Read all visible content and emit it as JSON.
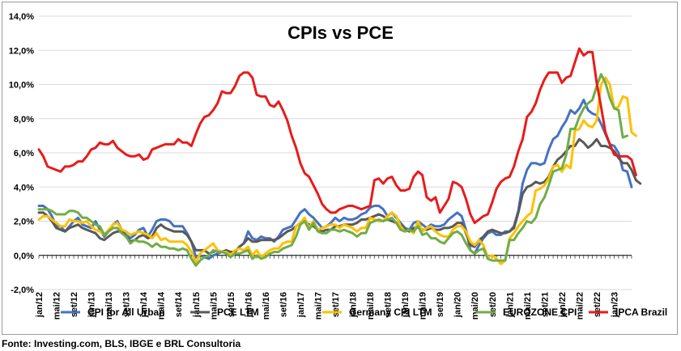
{
  "chart_data": {
    "type": "line",
    "title": "CPIs vs PCE",
    "source": "Fonte: Investing.com, BLS, IBGE e BRL Consultoria",
    "ylim": [
      -2,
      14
    ],
    "yticks": [
      -2,
      0,
      2,
      4,
      6,
      8,
      10,
      12,
      14
    ],
    "ytick_labels": [
      "-2,0%",
      "0,0%",
      "2,0%",
      "4,0%",
      "6,0%",
      "8,0%",
      "10,0%",
      "12,0%",
      "14,0%"
    ],
    "xtick_labels": [
      "jan/12",
      "mai/12",
      "set/12",
      "jan/13",
      "mai/13",
      "set/13",
      "jan/14",
      "mai/14",
      "set/14",
      "jan/15",
      "mai/15",
      "set/15",
      "jan/16",
      "mai/16",
      "set/16",
      "jan/17",
      "mai/17",
      "set/17",
      "jan/18",
      "mai/18",
      "set/18",
      "jan/19",
      "mai/19",
      "set/19",
      "jan/20",
      "mai/20",
      "set/20",
      "jan/21",
      "mai/21",
      "set/21",
      "jan/22",
      "mai/22",
      "set/22",
      "jan/23"
    ],
    "x_start": "2012-01",
    "legend_position": "bottom",
    "grid": true,
    "series": [
      {
        "name": "CPI for All Urban",
        "color": "#4472C4",
        "values": [
          2.9,
          2.9,
          2.7,
          2.3,
          1.7,
          1.7,
          1.4,
          1.7,
          2.0,
          2.2,
          1.8,
          1.7,
          1.6,
          2.0,
          1.5,
          1.1,
          1.4,
          1.8,
          2.0,
          1.5,
          1.2,
          1.0,
          1.2,
          1.5,
          1.6,
          1.1,
          1.5,
          2.0,
          2.1,
          2.1,
          2.0,
          1.7,
          1.7,
          1.7,
          1.3,
          0.8,
          -0.1,
          0.0,
          -0.1,
          -0.2,
          0.0,
          0.1,
          0.2,
          0.2,
          0.0,
          0.2,
          0.5,
          0.7,
          1.4,
          1.0,
          0.9,
          1.1,
          1.0,
          1.0,
          0.8,
          1.1,
          1.5,
          1.6,
          1.7,
          2.1,
          2.5,
          2.7,
          2.4,
          2.2,
          1.9,
          1.6,
          1.7,
          1.9,
          2.2,
          2.0,
          2.2,
          2.1,
          2.1,
          2.2,
          2.4,
          2.5,
          2.8,
          2.9,
          2.9,
          2.7,
          2.3,
          2.5,
          2.2,
          1.9,
          1.6,
          1.5,
          1.9,
          2.0,
          1.8,
          1.6,
          1.8,
          1.7,
          1.7,
          1.8,
          2.1,
          2.3,
          2.5,
          2.3,
          1.5,
          0.3,
          0.1,
          0.6,
          1.0,
          1.3,
          1.4,
          1.2,
          1.2,
          1.4,
          1.4,
          1.7,
          2.6,
          4.2,
          5.0,
          5.4,
          5.4,
          5.3,
          5.4,
          6.2,
          6.8,
          7.0,
          7.5,
          7.9,
          8.5,
          8.3,
          8.6,
          9.1,
          8.5,
          8.3,
          8.2,
          7.7,
          7.1,
          6.5,
          6.4,
          6.0,
          5.0,
          4.9,
          4.0
        ]
      },
      {
        "name": "PCE LTM",
        "color": "#595959",
        "values": [
          2.5,
          2.5,
          2.3,
          2.0,
          1.6,
          1.5,
          1.4,
          1.6,
          1.7,
          1.8,
          1.6,
          1.5,
          1.4,
          1.3,
          1.0,
          0.9,
          1.1,
          1.3,
          1.4,
          1.4,
          1.1,
          0.8,
          0.9,
          1.1,
          1.2,
          1.0,
          1.1,
          1.6,
          1.8,
          1.6,
          1.5,
          1.4,
          1.4,
          1.4,
          1.2,
          0.8,
          0.3,
          0.3,
          0.3,
          0.1,
          0.2,
          0.3,
          0.2,
          0.3,
          0.2,
          0.2,
          0.5,
          0.7,
          1.0,
          0.8,
          0.8,
          0.9,
          0.9,
          0.9,
          0.9,
          1.0,
          1.2,
          1.4,
          1.5,
          1.7,
          1.9,
          2.0,
          1.8,
          1.7,
          1.5,
          1.4,
          1.5,
          1.5,
          1.7,
          1.7,
          1.8,
          1.8,
          1.8,
          1.9,
          2.1,
          2.1,
          2.2,
          2.3,
          2.4,
          2.3,
          2.1,
          2.0,
          1.9,
          1.8,
          1.5,
          1.4,
          1.6,
          1.7,
          1.5,
          1.5,
          1.6,
          1.5,
          1.5,
          1.6,
          1.6,
          1.7,
          1.9,
          1.9,
          1.3,
          0.6,
          0.5,
          0.9,
          1.1,
          1.4,
          1.5,
          1.4,
          1.3,
          1.3,
          1.4,
          1.6,
          2.5,
          3.6,
          4.0,
          4.1,
          4.3,
          4.2,
          4.3,
          4.6,
          5.2,
          5.6,
          5.8,
          6.1,
          6.4,
          6.4,
          6.8,
          6.6,
          6.3,
          6.5,
          6.8,
          6.4,
          6.4,
          6.3,
          6.1,
          5.7,
          5.4,
          5.4,
          5.0,
          4.4,
          4.2
        ]
      },
      {
        "name": "Germany CPI LTM",
        "color": "#FFC000",
        "values": [
          2.1,
          2.3,
          2.3,
          2.1,
          1.9,
          1.7,
          1.7,
          2.1,
          2.0,
          2.0,
          1.9,
          2.0,
          1.7,
          1.5,
          1.4,
          1.2,
          1.5,
          1.8,
          1.9,
          1.5,
          1.4,
          1.2,
          1.3,
          1.4,
          1.3,
          1.2,
          1.0,
          1.3,
          0.9,
          1.0,
          0.8,
          0.8,
          0.8,
          0.8,
          0.6,
          0.2,
          -0.4,
          0.1,
          0.3,
          0.5,
          0.7,
          0.3,
          0.2,
          0.2,
          0.0,
          0.3,
          0.4,
          0.3,
          0.5,
          0.0,
          0.3,
          -0.1,
          0.1,
          0.3,
          0.4,
          0.4,
          0.7,
          0.8,
          0.8,
          1.7,
          1.9,
          2.2,
          1.6,
          2.0,
          1.5,
          1.6,
          1.7,
          1.8,
          1.8,
          1.6,
          1.8,
          1.7,
          1.6,
          1.4,
          1.6,
          1.6,
          2.2,
          2.1,
          2.0,
          2.0,
          2.3,
          2.5,
          2.3,
          1.7,
          1.4,
          1.5,
          1.3,
          2.0,
          1.4,
          1.6,
          1.7,
          1.4,
          1.2,
          1.1,
          1.1,
          1.5,
          1.7,
          1.7,
          1.4,
          0.8,
          0.6,
          0.9,
          0.6,
          -0.1,
          0.0,
          -0.2,
          -0.5,
          -0.3,
          1.0,
          1.3,
          1.7,
          2.0,
          2.3,
          2.5,
          3.8,
          3.9,
          4.1,
          4.5,
          5.2,
          5.3,
          4.9,
          5.3,
          5.1,
          7.3,
          7.4,
          7.9,
          7.6,
          7.5,
          7.9,
          10.0,
          10.4,
          10.0,
          8.6,
          8.7,
          9.3,
          9.2,
          7.2,
          7.0
        ]
      },
      {
        "name": "EUROZONE CPI",
        "color": "#70AD47",
        "values": [
          2.7,
          2.7,
          2.7,
          2.6,
          2.4,
          2.4,
          2.4,
          2.6,
          2.6,
          2.5,
          2.2,
          2.2,
          2.0,
          1.8,
          1.7,
          1.2,
          1.4,
          1.6,
          1.6,
          1.3,
          1.1,
          0.7,
          0.9,
          0.8,
          0.8,
          0.7,
          0.5,
          0.7,
          0.5,
          0.5,
          0.4,
          0.4,
          0.3,
          0.4,
          0.3,
          -0.2,
          -0.6,
          -0.3,
          -0.1,
          0.0,
          0.3,
          0.2,
          0.2,
          0.1,
          -0.1,
          0.1,
          0.1,
          0.2,
          0.3,
          -0.2,
          0.0,
          -0.2,
          -0.1,
          0.1,
          0.2,
          0.2,
          0.4,
          0.5,
          0.6,
          1.1,
          1.8,
          2.0,
          1.5,
          1.9,
          1.4,
          1.3,
          1.3,
          1.5,
          1.5,
          1.4,
          1.5,
          1.4,
          1.3,
          1.1,
          1.3,
          1.3,
          1.9,
          2.0,
          2.1,
          2.0,
          2.1,
          2.2,
          1.9,
          1.5,
          1.4,
          1.5,
          1.4,
          1.7,
          1.2,
          1.3,
          1.0,
          1.0,
          0.8,
          0.7,
          1.0,
          1.3,
          1.4,
          1.2,
          0.7,
          0.3,
          0.1,
          0.3,
          0.4,
          -0.2,
          -0.3,
          -0.3,
          -0.3,
          -0.3,
          0.9,
          0.9,
          1.3,
          1.6,
          2.0,
          1.9,
          2.2,
          3.0,
          3.4,
          4.1,
          4.9,
          5.0,
          5.1,
          5.9,
          7.4,
          7.4,
          8.1,
          8.6,
          8.9,
          9.1,
          9.9,
          10.6,
          10.1,
          9.2,
          8.6,
          8.5,
          6.9,
          7.0
        ]
      },
      {
        "name": "IPCA Brazil",
        "color": "#E81B1B",
        "values": [
          6.2,
          5.8,
          5.2,
          5.1,
          5.0,
          4.9,
          5.2,
          5.2,
          5.3,
          5.5,
          5.5,
          5.8,
          6.2,
          6.3,
          6.6,
          6.5,
          6.5,
          6.7,
          6.3,
          6.1,
          5.9,
          5.8,
          5.8,
          5.9,
          5.6,
          5.7,
          6.2,
          6.3,
          6.4,
          6.5,
          6.5,
          6.5,
          6.8,
          6.6,
          6.6,
          6.4,
          7.1,
          7.7,
          8.1,
          8.2,
          8.5,
          8.9,
          9.6,
          9.5,
          9.5,
          9.9,
          10.5,
          10.7,
          10.7,
          10.4,
          9.4,
          9.3,
          9.3,
          8.8,
          8.7,
          9.0,
          8.5,
          7.9,
          7.0,
          6.3,
          5.4,
          4.8,
          4.6,
          4.1,
          3.6,
          3.0,
          2.7,
          2.5,
          2.5,
          2.7,
          2.8,
          2.9,
          2.9,
          2.8,
          2.7,
          2.8,
          2.9,
          4.4,
          4.5,
          4.2,
          4.5,
          4.6,
          4.1,
          3.8,
          3.8,
          3.9,
          4.6,
          4.9,
          4.7,
          3.4,
          3.2,
          3.4,
          2.5,
          2.9,
          3.3,
          4.3,
          4.2,
          4.0,
          3.3,
          2.4,
          1.9,
          2.1,
          2.3,
          2.4,
          3.1,
          3.9,
          4.3,
          4.5,
          4.6,
          5.2,
          6.1,
          6.8,
          8.1,
          8.4,
          8.9,
          9.7,
          10.3,
          10.7,
          10.7,
          10.7,
          10.1,
          10.4,
          10.5,
          11.3,
          12.1,
          11.7,
          11.9,
          11.9,
          10.1,
          8.7,
          7.2,
          6.5,
          5.9,
          5.8,
          5.8,
          5.8,
          5.6,
          4.7
        ]
      }
    ]
  }
}
